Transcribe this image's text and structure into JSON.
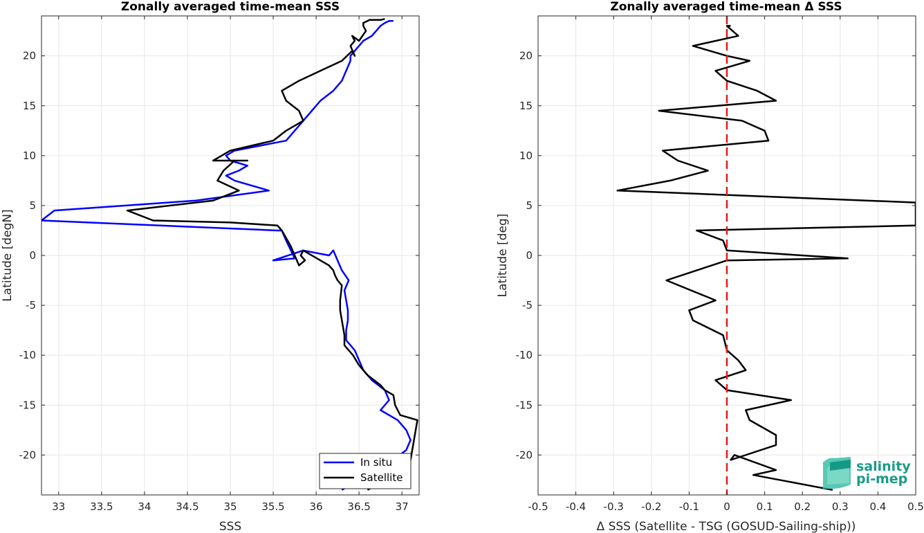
{
  "chart_data": [
    {
      "type": "line",
      "title": "Zonally averaged time-mean SSS",
      "xlabel": "SSS",
      "ylabel": "Latitude [degN]",
      "xlim": [
        32.8,
        37.2
      ],
      "ylim": [
        -24,
        24
      ],
      "xticks": [
        33,
        33.5,
        34,
        34.5,
        35,
        35.5,
        36,
        36.5,
        37
      ],
      "xtick_labels": [
        "33",
        "33.5",
        "34",
        "34.5",
        "35",
        "35.5",
        "36",
        "36.5",
        "37"
      ],
      "yticks": [
        20,
        15,
        10,
        5,
        0,
        -5,
        -10,
        -15,
        -20
      ],
      "ytick_labels": [
        "20",
        "15",
        "10",
        "5",
        "0",
        "-5",
        "-10",
        "-15",
        "-20"
      ],
      "grid": true,
      "legend_position": "bottom-right",
      "series": [
        {
          "name": "In situ",
          "color": "#0000ff",
          "x": [
            36.3,
            36.5,
            36.6,
            36.9,
            37.05,
            37.1,
            37.05,
            36.95,
            36.75,
            36.85,
            36.8,
            36.65,
            36.55,
            36.5,
            36.45,
            36.35,
            36.35,
            36.37,
            36.37,
            36.35,
            36.33,
            36.38,
            36.3,
            36.25,
            36.2,
            36.15,
            35.85,
            35.85,
            35.5,
            35.75,
            35.65,
            35.6,
            35.55,
            32.8,
            32.95,
            34.6,
            35.45,
            35.05,
            34.95,
            35.1,
            35.2,
            35.0,
            34.95,
            35.05,
            35.65,
            35.75,
            35.85,
            35.95,
            36.05,
            36.2,
            36.3,
            36.35,
            36.4,
            36.4,
            36.45,
            36.5,
            36.55,
            36.65,
            36.7,
            36.75,
            36.8,
            36.85,
            36.9
          ],
          "y": [
            -23.5,
            -22.5,
            -21.5,
            -20.5,
            -19.5,
            -18.5,
            -17.5,
            -16.5,
            -15.5,
            -14.5,
            -13.5,
            -12.5,
            -11.5,
            -10.5,
            -9.5,
            -8.5,
            -7.5,
            -6.5,
            -5.5,
            -4.5,
            -3.5,
            -2.5,
            -1.5,
            -0.5,
            0.5,
            0.0,
            0.5,
            0.5,
            -0.5,
            -0.3,
            1.5,
            2.5,
            2.5,
            3.5,
            4.5,
            5.5,
            6.5,
            7.5,
            8.0,
            8.5,
            9.0,
            9.5,
            10.0,
            10.5,
            11.5,
            12.5,
            13.5,
            14.5,
            15.5,
            16.5,
            17.5,
            18.5,
            19.5,
            20.0,
            20.5,
            21.0,
            21.5,
            22.0,
            22.5,
            23.0,
            23.3,
            23.5,
            23.5
          ]
        },
        {
          "name": "Satellite",
          "color": "#000000",
          "x": [
            36.6,
            36.9,
            37.1,
            37.12,
            37.18,
            36.98,
            36.92,
            36.9,
            36.8,
            36.75,
            36.6,
            36.5,
            36.43,
            36.33,
            36.33,
            36.3,
            36.28,
            36.28,
            36.3,
            36.25,
            36.22,
            36.2,
            36.15,
            35.85,
            35.82,
            35.87,
            35.8,
            35.7,
            35.6,
            35.55,
            35.0,
            34.1,
            33.8,
            34.8,
            35.1,
            34.85,
            34.92,
            35.05,
            35.2,
            34.8,
            35.0,
            35.5,
            35.65,
            35.85,
            35.8,
            35.65,
            35.6,
            35.8,
            36.05,
            36.3,
            36.42,
            36.45,
            36.4,
            36.45,
            36.42,
            36.5,
            36.58,
            36.55,
            36.55,
            36.6,
            36.62,
            36.75,
            36.8,
            36.8
          ],
          "y": [
            -23.5,
            -22.0,
            -20.5,
            -19.5,
            -16.5,
            -16.0,
            -15.0,
            -14.0,
            -13.5,
            -13.0,
            -12.0,
            -11.0,
            -10.0,
            -9.0,
            -8.0,
            -6.5,
            -5.5,
            -4.5,
            -3.0,
            -2.5,
            -2.0,
            -1.5,
            -1.0,
            0.5,
            0.0,
            -0.5,
            -1.0,
            1.0,
            2.5,
            3.0,
            3.3,
            3.5,
            4.5,
            5.5,
            6.5,
            7.5,
            8.5,
            9.5,
            9.5,
            9.5,
            10.5,
            11.5,
            12.5,
            13.5,
            14.5,
            15.5,
            16.5,
            17.5,
            18.5,
            19.5,
            20.5,
            20.0,
            21.0,
            21.5,
            22.0,
            21.5,
            22.5,
            23.0,
            23.3,
            23.5,
            23.6,
            23.6,
            23.7,
            23.7
          ]
        }
      ]
    },
    {
      "type": "line",
      "title": "Zonally averaged time-mean Δ SSS",
      "xlabel": "Δ SSS (Satellite - TSG (GOSUD-Sailing-ship))",
      "ylabel": "Latitude [deg]",
      "xlim": [
        -0.5,
        0.5
      ],
      "ylim": [
        -24,
        24
      ],
      "xticks": [
        -0.5,
        -0.4,
        -0.3,
        -0.2,
        -0.1,
        0,
        0.1,
        0.2,
        0.3,
        0.4,
        0.5
      ],
      "xtick_labels": [
        "-0.5",
        "-0.4",
        "-0.3",
        "-0.2",
        "-0.1",
        "0",
        "0.1",
        "0.2",
        "0.3",
        "0.4",
        "0.5"
      ],
      "yticks": [
        20,
        15,
        10,
        5,
        0,
        -5,
        -10,
        -15,
        -20
      ],
      "ytick_labels": [
        "20",
        "15",
        "10",
        "5",
        "0",
        "-5",
        "-10",
        "-15",
        "-20"
      ],
      "grid": true,
      "reference_line": {
        "x": 0,
        "color": "#e31a1c",
        "style": "dashed"
      },
      "series": [
        {
          "name": "",
          "color": "#000000",
          "x": [
            0.28,
            0.07,
            0.13,
            0.02,
            0.01,
            0.13,
            0.13,
            0.06,
            0.05,
            0.17,
            0.0,
            -0.03,
            0.05,
            0.03,
            0.0,
            -0.01,
            -0.09,
            -0.1,
            -0.03,
            -0.16,
            -0.08,
            0.0,
            0.32,
            0.0,
            -0.01,
            -0.08,
            0.5,
            0.5,
            -0.29,
            -0.15,
            -0.05,
            -0.13,
            -0.17,
            0.11,
            0.1,
            0.04,
            -0.18,
            0.13,
            0.08,
            0.0,
            -0.03,
            0.06,
            0.0,
            -0.09,
            0.03,
            0.0,
            0.01
          ],
          "y": [
            -23.5,
            -22.0,
            -21.5,
            -20.0,
            -20.5,
            -19.0,
            -18.0,
            -16.5,
            -15.5,
            -14.5,
            -13.5,
            -12.5,
            -11.5,
            -10.5,
            -9.5,
            -8.0,
            -6.5,
            -5.5,
            -4.5,
            -2.5,
            -1.5,
            -0.5,
            -0.3,
            0.5,
            1.5,
            2.5,
            3.0,
            5.3,
            6.5,
            7.5,
            8.5,
            9.5,
            10.5,
            11.5,
            12.5,
            13.5,
            14.5,
            15.5,
            16.5,
            17.5,
            18.5,
            19.5,
            20.0,
            21.0,
            22.0,
            23.0,
            23.0
          ]
        }
      ]
    }
  ],
  "legend": {
    "items": [
      "In situ",
      "Satellite"
    ]
  },
  "logo": {
    "line1": "salinity",
    "line2": "pi-mep"
  }
}
